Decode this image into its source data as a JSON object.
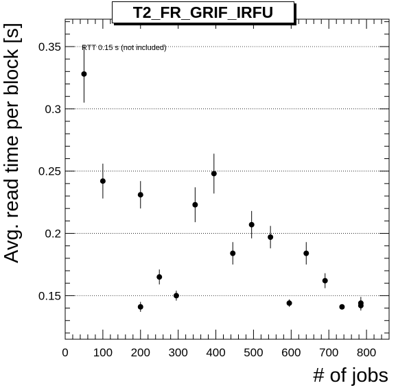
{
  "chart_data": {
    "type": "scatter",
    "title": "T2_FR_GRIF_IRFU",
    "xlabel": "# of jobs",
    "ylabel": "Avg. read time per block [s]",
    "annotation": "RTT 0.15 s (not included)",
    "xlim": [
      0,
      860
    ],
    "ylim": [
      0.115,
      0.372
    ],
    "x_ticks": [
      0,
      100,
      200,
      300,
      400,
      500,
      600,
      700,
      800
    ],
    "y_ticks": [
      0.15,
      0.2,
      0.25,
      0.3,
      0.35
    ],
    "y_tick_labels": [
      "0.15",
      "0.2",
      "0.25",
      "0.3",
      "0.35"
    ],
    "grid": "horizontal dotted at major y ticks",
    "marker_color": "#000000",
    "points": [
      {
        "x": 50,
        "y": 0.328,
        "err": 0.023
      },
      {
        "x": 100,
        "y": 0.242,
        "err": 0.014
      },
      {
        "x": 200,
        "y": 0.141,
        "err": 0.004
      },
      {
        "x": 200,
        "y": 0.231,
        "err": 0.011
      },
      {
        "x": 250,
        "y": 0.165,
        "err": 0.006
      },
      {
        "x": 295,
        "y": 0.15,
        "err": 0.004
      },
      {
        "x": 345,
        "y": 0.223,
        "err": 0.014
      },
      {
        "x": 395,
        "y": 0.248,
        "err": 0.016
      },
      {
        "x": 445,
        "y": 0.184,
        "err": 0.009
      },
      {
        "x": 495,
        "y": 0.207,
        "err": 0.011
      },
      {
        "x": 545,
        "y": 0.197,
        "err": 0.009
      },
      {
        "x": 595,
        "y": 0.144,
        "err": 0.003
      },
      {
        "x": 640,
        "y": 0.184,
        "err": 0.009
      },
      {
        "x": 690,
        "y": 0.162,
        "err": 0.006
      },
      {
        "x": 735,
        "y": 0.141,
        "err": 0.002
      },
      {
        "x": 785,
        "y": 0.142,
        "err": 0.004
      },
      {
        "x": 785,
        "y": 0.144,
        "err": 0.005
      }
    ]
  }
}
